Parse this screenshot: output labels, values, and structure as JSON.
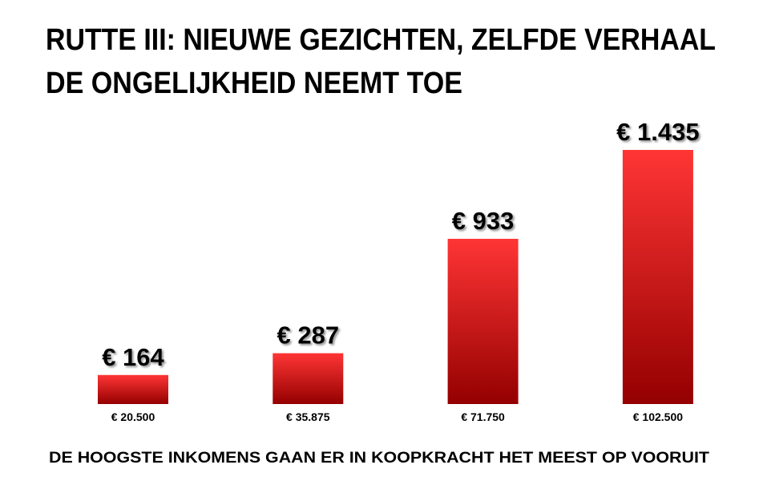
{
  "chart_data": {
    "type": "bar",
    "title": "RUTTE III: NIEUWE GEZICHTEN, ZELFDE VERHAAL",
    "subtitle": "DE ONGELIJKHEID NEEMT TOE",
    "categories": [
      "€ 20.500",
      "€ 35.875",
      "€ 71.750",
      "€ 102.500"
    ],
    "values": [
      164,
      287,
      933,
      1435
    ],
    "value_labels": [
      "€ 164",
      "€ 287",
      "€ 933",
      "€ 1.435"
    ],
    "color": "#ff3535",
    "annotation": "DE HOOGSTE INKOMENS GAAN ER IN KOOPKRACHT HET MEEST OP VOORUIT"
  }
}
